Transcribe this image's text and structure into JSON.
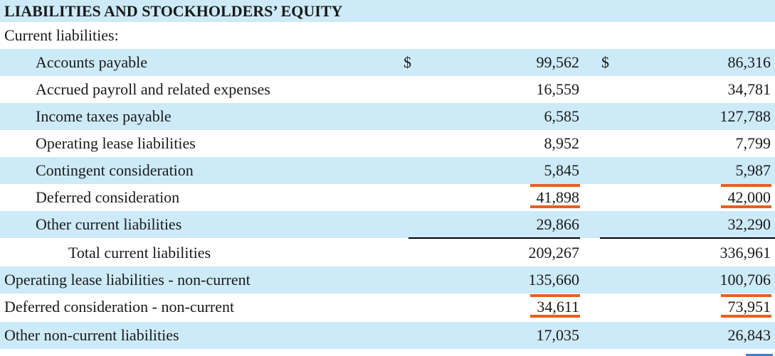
{
  "section_title": "LIABILITIES AND STOCKHOLDERS’ EQUITY",
  "current_label": "Current liabilities:",
  "currency_symbol": "$",
  "rows": [
    {
      "label": "Accounts payable",
      "v1": "99,562",
      "v2": "86,316"
    },
    {
      "label": "Accrued payroll and related expenses",
      "v1": "16,559",
      "v2": "34,781"
    },
    {
      "label": "Income taxes payable",
      "v1": "6,585",
      "v2": "127,788"
    },
    {
      "label": "Operating lease liabilities",
      "v1": "8,952",
      "v2": "7,799"
    },
    {
      "label": "Contingent consideration",
      "v1": "5,845",
      "v2": "5,987"
    },
    {
      "label": "Deferred consideration",
      "v1": "41,898",
      "v2": "42,000"
    },
    {
      "label": "Other current liabilities",
      "v1": "29,866",
      "v2": "32,290"
    },
    {
      "label": "Total current liabilities",
      "v1": "209,267",
      "v2": "336,961"
    },
    {
      "label": "Operating lease liabilities - non-current",
      "v1": "135,660",
      "v2": "100,706"
    },
    {
      "label": "Deferred consideration - non-current",
      "v1": "34,611",
      "v2": "73,951"
    },
    {
      "label": "Other non-current liabilities",
      "v1": "17,035",
      "v2": "26,843"
    }
  ],
  "colors": {
    "row_shade": "#cdeaf8",
    "highlight_underline": "#e8601c",
    "selection_mark": "#3a7fd5"
  }
}
